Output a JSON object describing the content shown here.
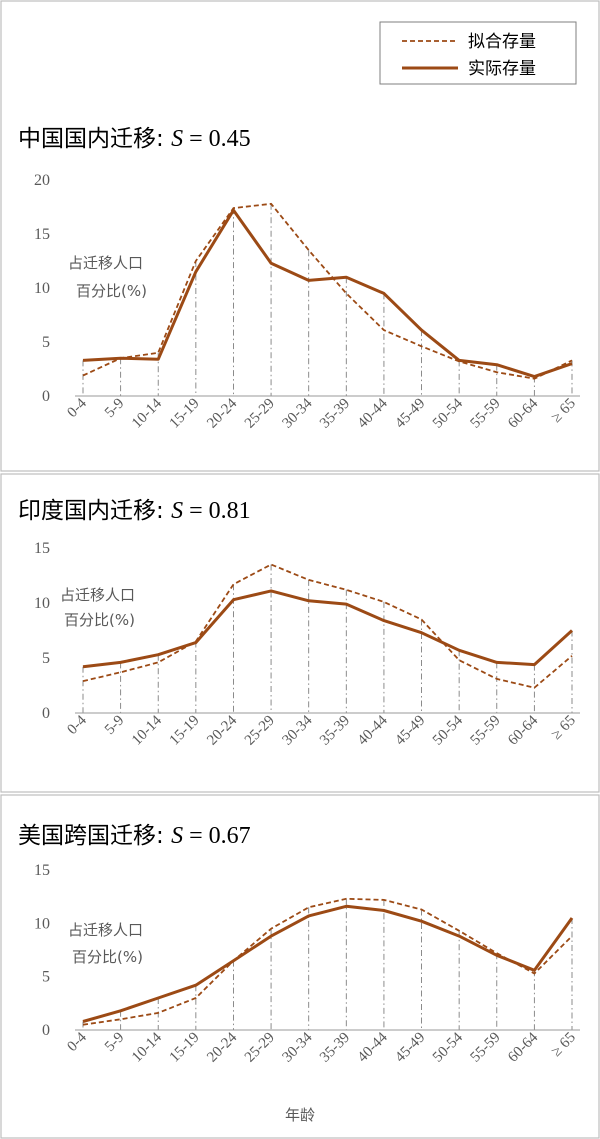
{
  "legend": {
    "fitted": "拟合存量",
    "actual": "实际存量"
  },
  "xlabel": "年龄",
  "ylabel_line1": "占迁移人口",
  "ylabel_line2": "百分比(%)",
  "colors": {
    "series": "#9c4a15",
    "grid": "#7f7f7f",
    "frame": "#bdbdbd"
  },
  "chart_data": [
    {
      "type": "line",
      "title_prefix": "中国国内迁移: ",
      "title_s": "S",
      "title_value": " = 0.45",
      "categories": [
        "0-4",
        "5-9",
        "10-14",
        "15-19",
        "20-24",
        "25-29",
        "30-34",
        "35-39",
        "40-44",
        "45-49",
        "50-54",
        "55-59",
        "60-64",
        "≥ 65"
      ],
      "ylim": [
        0,
        20
      ],
      "yticks": [
        0,
        5,
        10,
        15,
        20
      ],
      "series": [
        {
          "name": "拟合存量",
          "style": "dashed",
          "values": [
            1.9,
            3.5,
            4.0,
            12.5,
            17.4,
            17.8,
            13.5,
            9.5,
            6.1,
            4.6,
            3.2,
            2.2,
            1.6,
            3.3
          ]
        },
        {
          "name": "实际存量",
          "style": "solid",
          "values": [
            3.3,
            3.5,
            3.4,
            11.5,
            17.2,
            12.3,
            10.7,
            11.0,
            9.5,
            6.1,
            3.3,
            2.9,
            1.8,
            3.0
          ]
        }
      ]
    },
    {
      "type": "line",
      "title_prefix": "印度国内迁移: ",
      "title_s": "S",
      "title_value": " = 0.81",
      "categories": [
        "0-4",
        "5-9",
        "10-14",
        "15-19",
        "20-24",
        "25-29",
        "30-34",
        "35-39",
        "40-44",
        "45-49",
        "50-54",
        "55-59",
        "60-64",
        "≥ 65"
      ],
      "ylim": [
        0,
        15
      ],
      "yticks": [
        0,
        5,
        10,
        15
      ],
      "series": [
        {
          "name": "拟合存量",
          "style": "dashed",
          "values": [
            2.9,
            3.7,
            4.6,
            6.5,
            11.7,
            13.5,
            12.1,
            11.2,
            10.1,
            8.5,
            4.8,
            3.1,
            2.3,
            5.2
          ]
        },
        {
          "name": "实际存量",
          "style": "solid",
          "values": [
            4.2,
            4.6,
            5.3,
            6.4,
            10.3,
            11.1,
            10.2,
            9.9,
            8.4,
            7.3,
            5.7,
            4.6,
            4.4,
            7.5
          ]
        }
      ]
    },
    {
      "type": "line",
      "title_prefix": "美国跨国迁移: ",
      "title_s": "S",
      "title_value": " = 0.67",
      "categories": [
        "0-4",
        "5-9",
        "10-14",
        "15-19",
        "20-24",
        "25-29",
        "30-34",
        "35-39",
        "40-44",
        "45-49",
        "50-54",
        "55-59",
        "60-64",
        "≥ 65"
      ],
      "ylim": [
        0,
        15
      ],
      "yticks": [
        0,
        5,
        10,
        15
      ],
      "series": [
        {
          "name": "拟合存量",
          "style": "dashed",
          "values": [
            0.5,
            1.0,
            1.6,
            3.0,
            6.5,
            9.5,
            11.5,
            12.3,
            12.2,
            11.3,
            9.3,
            7.2,
            5.3,
            8.8
          ]
        },
        {
          "name": "实际存量",
          "style": "solid",
          "values": [
            0.8,
            1.8,
            3.0,
            4.2,
            6.5,
            8.8,
            10.7,
            11.6,
            11.2,
            10.2,
            8.8,
            7.0,
            5.6,
            10.5
          ]
        }
      ]
    }
  ]
}
